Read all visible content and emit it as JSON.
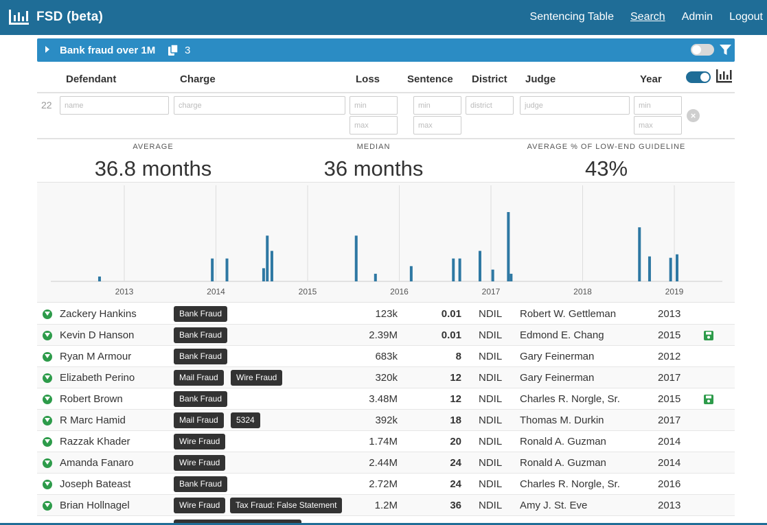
{
  "app": {
    "title": "FSD (beta)",
    "brand_icon": "bar-chart-icon"
  },
  "nav": [
    {
      "label": "Sentencing Table",
      "active": false
    },
    {
      "label": "Search",
      "active": true
    },
    {
      "label": "Admin",
      "active": false
    },
    {
      "label": "Logout",
      "active": false
    }
  ],
  "search": {
    "title": "Bank fraud over 1M",
    "count": "3",
    "accent": "#2b8cc4"
  },
  "columns": {
    "defendant": "Defendant",
    "charge": "Charge",
    "loss": "Loss",
    "sentence": "Sentence",
    "district": "District",
    "judge": "Judge",
    "year": "Year"
  },
  "filters": {
    "row_count": "22",
    "name_placeholder": "name",
    "charge_placeholder": "charge",
    "min_placeholder": "min",
    "max_placeholder": "max",
    "district_placeholder": "district",
    "judge_placeholder": "judge"
  },
  "stats": {
    "average_label": "AVERAGE",
    "average_value": "36.8 months",
    "median_label": "MEDIAN",
    "median_value": "36 months",
    "guideline_label": "AVERAGE % OF LOW-END GUIDELINE",
    "guideline_value": "43%"
  },
  "chart_data": {
    "type": "bar",
    "x_tick_labels": [
      "2013",
      "2014",
      "2015",
      "2016",
      "2017",
      "2018",
      "2019"
    ],
    "x_range": [
      2012.2,
      2019.5
    ],
    "bar_color": "#2e78a3",
    "grid": "vertical",
    "bars": [
      {
        "x": 2012.73,
        "v": 0.07
      },
      {
        "x": 2013.96,
        "v": 0.33
      },
      {
        "x": 2014.12,
        "v": 0.33
      },
      {
        "x": 2014.52,
        "v": 0.19
      },
      {
        "x": 2014.56,
        "v": 0.66
      },
      {
        "x": 2014.61,
        "v": 0.44
      },
      {
        "x": 2015.53,
        "v": 0.66
      },
      {
        "x": 2015.74,
        "v": 0.11
      },
      {
        "x": 2016.13,
        "v": 0.22
      },
      {
        "x": 2016.59,
        "v": 0.33
      },
      {
        "x": 2016.66,
        "v": 0.33
      },
      {
        "x": 2016.88,
        "v": 0.44
      },
      {
        "x": 2017.02,
        "v": 0.17
      },
      {
        "x": 2017.19,
        "v": 1.0
      },
      {
        "x": 2017.22,
        "v": 0.11
      },
      {
        "x": 2018.62,
        "v": 0.78
      },
      {
        "x": 2018.73,
        "v": 0.36
      },
      {
        "x": 2018.96,
        "v": 0.34
      },
      {
        "x": 2019.03,
        "v": 0.39
      }
    ]
  },
  "rows": [
    {
      "name": "Zackery Hankins",
      "charges": [
        "Bank Fraud"
      ],
      "loss": "123k",
      "sentence": "0.01",
      "district": "NDIL",
      "judge": "Robert W. Gettleman",
      "year": "2013",
      "saved": false
    },
    {
      "name": "Kevin D Hanson",
      "charges": [
        "Bank Fraud"
      ],
      "loss": "2.39M",
      "sentence": "0.01",
      "district": "NDIL",
      "judge": "Edmond E. Chang",
      "year": "2015",
      "saved": true
    },
    {
      "name": "Ryan M Armour",
      "charges": [
        "Bank Fraud"
      ],
      "loss": "683k",
      "sentence": "8",
      "district": "NDIL",
      "judge": "Gary Feinerman",
      "year": "2012",
      "saved": false
    },
    {
      "name": "Elizabeth Perino",
      "charges": [
        "Mail Fraud",
        "Wire Fraud"
      ],
      "loss": "320k",
      "sentence": "12",
      "district": "NDIL",
      "judge": "Gary Feinerman",
      "year": "2017",
      "saved": false
    },
    {
      "name": "Robert Brown",
      "charges": [
        "Bank Fraud"
      ],
      "loss": "3.48M",
      "sentence": "12",
      "district": "NDIL",
      "judge": "Charles R. Norgle, Sr.",
      "year": "2015",
      "saved": true
    },
    {
      "name": "R Marc Hamid",
      "charges": [
        "Mail Fraud",
        "5324"
      ],
      "loss": "392k",
      "sentence": "18",
      "district": "NDIL",
      "judge": "Thomas M. Durkin",
      "year": "2017",
      "saved": false
    },
    {
      "name": "Razzak Khader",
      "charges": [
        "Wire Fraud"
      ],
      "loss": "1.74M",
      "sentence": "20",
      "district": "NDIL",
      "judge": "Ronald A. Guzman",
      "year": "2014",
      "saved": false
    },
    {
      "name": "Amanda Fanaro",
      "charges": [
        "Wire Fraud"
      ],
      "loss": "2.44M",
      "sentence": "24",
      "district": "NDIL",
      "judge": "Ronald A. Guzman",
      "year": "2014",
      "saved": false
    },
    {
      "name": "Joseph Bateast",
      "charges": [
        "Bank Fraud"
      ],
      "loss": "2.72M",
      "sentence": "24",
      "district": "NDIL",
      "judge": "Charles R. Norgle, Sr.",
      "year": "2016",
      "saved": false
    },
    {
      "name": "Brian Hollnagel",
      "charges": [
        "Wire Fraud",
        "Tax Fraud: False Statement"
      ],
      "loss": "1.2M",
      "sentence": "36",
      "district": "NDIL",
      "judge": "Amy J. St. Eve",
      "year": "2013",
      "saved": false
    }
  ]
}
